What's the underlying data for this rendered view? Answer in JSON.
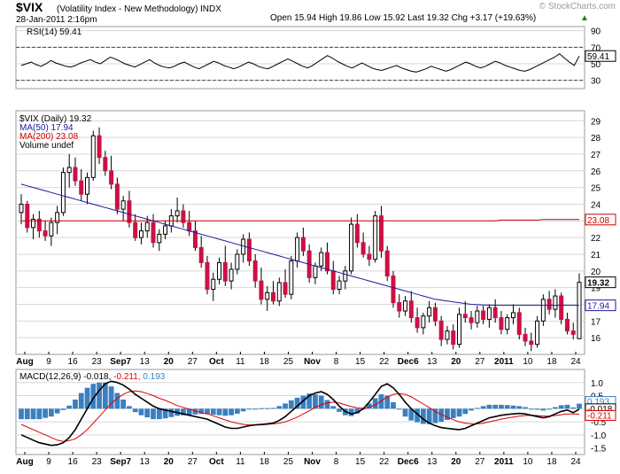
{
  "header": {
    "symbol": "$VIX",
    "name": "(Volatility Index - New Methodology)",
    "exchange": "INDX",
    "datetime": "28-Jan-2011 2:16pm",
    "quote": "Open 15.94  High 19.86  Low 15.92  Last 19.32  Chg +3.17 (+19.63%)",
    "quote_arrow": "▲",
    "watermark": "© StockCharts.com"
  },
  "colors": {
    "up": "#ffffff",
    "down": "#cc1144",
    "ma50": "#1a1a99",
    "ma200": "#cc0000",
    "rsi": "#000000",
    "macd": "#000000",
    "signal": "#dd0000",
    "histogram": "#3a7fc0",
    "grid": "#d8d8d8"
  },
  "chart_data": [
    {
      "type": "line",
      "title": "RSI(14) 59.41",
      "series": [
        {
          "name": "RSI(14)",
          "last": 59.41
        }
      ],
      "y_ticks": [
        "90",
        "70",
        "50",
        "30"
      ],
      "ylim": [
        20,
        95
      ],
      "reference_lines": [
        70,
        30
      ],
      "last_value_label": "59.41",
      "y": [
        48,
        50,
        52,
        49,
        47,
        50,
        54,
        51,
        49,
        47,
        46,
        48,
        51,
        53,
        55,
        52,
        50,
        54,
        58,
        56,
        53,
        50,
        48,
        46,
        49,
        52,
        55,
        51,
        48,
        46,
        45,
        47,
        50,
        52,
        49,
        46,
        44,
        47,
        50,
        53,
        51,
        48,
        46,
        44,
        46,
        49,
        52,
        50,
        47,
        45,
        44,
        47,
        50,
        53,
        56,
        53,
        50,
        47,
        45,
        48,
        52,
        56,
        60,
        57,
        53,
        50,
        47,
        45,
        48,
        51,
        48,
        45,
        43,
        42,
        44,
        46,
        48,
        45,
        43,
        41,
        40,
        42,
        44,
        47,
        45,
        43,
        41,
        43,
        46,
        49,
        52,
        50,
        47,
        45,
        47,
        50,
        53,
        51,
        48,
        46,
        44,
        42,
        41,
        43,
        46,
        49,
        52,
        55,
        58,
        62,
        57,
        52,
        48,
        59.41
      ]
    },
    {
      "type": "candlestick",
      "title": "$VIX (Daily) 19.32",
      "legend": [
        {
          "label": "$VIX (Daily) 19.32",
          "color": "#000000"
        },
        {
          "label": "MA(50) 17.94",
          "color": "#1a1a99"
        },
        {
          "label": "MA(200) 23.08",
          "color": "#cc0000"
        },
        {
          "label": "Volume undef",
          "color": "#000000"
        }
      ],
      "y_ticks": [
        "29",
        "28",
        "27",
        "26",
        "25",
        "24",
        "23",
        "22",
        "21",
        "20",
        "19",
        "18",
        "17",
        "16"
      ],
      "ylim": [
        15,
        29.6
      ],
      "x_tick_labels": [
        "Aug",
        "9",
        "16",
        "23",
        "Sep7",
        "13",
        "20",
        "27",
        "Oct",
        "11",
        "18",
        "25",
        "Nov",
        "8",
        "15",
        "22",
        "Dec6",
        "13",
        "20",
        "27",
        "2011",
        "10",
        "18",
        "24"
      ],
      "last_value_labels": {
        "ma200": "23.08",
        "close": "19.32",
        "ma50": "17.94"
      },
      "ohlc": [
        [
          23.5,
          24.6,
          22.8,
          24.0
        ],
        [
          24.0,
          24.2,
          22.3,
          22.6
        ],
        [
          22.6,
          23.4,
          21.9,
          23.1
        ],
        [
          23.1,
          23.6,
          22.0,
          22.4
        ],
        [
          22.4,
          23.0,
          21.8,
          22.1
        ],
        [
          22.1,
          23.2,
          21.5,
          22.9
        ],
        [
          22.9,
          23.9,
          22.2,
          23.5
        ],
        [
          23.5,
          26.2,
          23.3,
          25.9
        ],
        [
          25.9,
          27.0,
          25.0,
          26.2
        ],
        [
          26.2,
          26.8,
          25.1,
          25.4
        ],
        [
          25.4,
          26.1,
          24.2,
          24.6
        ],
        [
          24.6,
          25.9,
          24.0,
          25.6
        ],
        [
          25.6,
          28.4,
          25.4,
          28.1
        ],
        [
          28.1,
          28.6,
          26.4,
          26.8
        ],
        [
          26.8,
          27.2,
          25.7,
          26.0
        ],
        [
          26.0,
          26.9,
          24.9,
          25.2
        ],
        [
          25.2,
          25.6,
          23.4,
          23.7
        ],
        [
          23.7,
          24.5,
          23.0,
          24.2
        ],
        [
          24.2,
          24.8,
          22.6,
          22.9
        ],
        [
          22.9,
          23.4,
          21.8,
          22.0
        ],
        [
          22.0,
          22.9,
          21.6,
          22.4
        ],
        [
          22.4,
          23.3,
          22.0,
          22.9
        ],
        [
          22.9,
          23.4,
          21.4,
          21.7
        ],
        [
          21.7,
          22.5,
          21.2,
          22.2
        ],
        [
          22.2,
          23.0,
          21.9,
          22.7
        ],
        [
          22.7,
          23.7,
          22.3,
          23.3
        ],
        [
          23.3,
          24.4,
          22.9,
          23.6
        ],
        [
          23.6,
          24.0,
          22.6,
          22.9
        ],
        [
          22.9,
          23.6,
          22.1,
          22.4
        ],
        [
          22.4,
          23.0,
          21.2,
          21.4
        ],
        [
          21.4,
          22.1,
          20.2,
          20.5
        ],
        [
          20.5,
          20.9,
          18.6,
          18.9
        ],
        [
          18.9,
          19.9,
          18.2,
          19.5
        ],
        [
          19.5,
          20.8,
          19.2,
          20.5
        ],
        [
          20.5,
          21.5,
          19.1,
          19.4
        ],
        [
          19.4,
          20.5,
          18.9,
          20.1
        ],
        [
          20.1,
          21.3,
          19.8,
          21.0
        ],
        [
          21.0,
          22.2,
          20.5,
          21.9
        ],
        [
          21.9,
          22.3,
          20.3,
          20.6
        ],
        [
          20.6,
          21.0,
          19.0,
          19.4
        ],
        [
          19.4,
          20.2,
          18.0,
          18.3
        ],
        [
          18.3,
          19.1,
          17.6,
          18.7
        ],
        [
          18.7,
          19.4,
          18.0,
          18.2
        ],
        [
          18.2,
          19.6,
          17.9,
          19.3
        ],
        [
          19.3,
          20.1,
          18.4,
          18.6
        ],
        [
          18.6,
          20.9,
          18.3,
          20.6
        ],
        [
          20.6,
          22.3,
          20.2,
          22.0
        ],
        [
          22.0,
          22.6,
          20.9,
          21.2
        ],
        [
          21.2,
          21.6,
          19.3,
          19.6
        ],
        [
          19.6,
          20.5,
          19.2,
          20.3
        ],
        [
          20.3,
          21.4,
          20.0,
          21.1
        ],
        [
          21.1,
          21.7,
          19.8,
          20.0
        ],
        [
          20.0,
          20.6,
          18.6,
          18.9
        ],
        [
          18.9,
          19.7,
          18.6,
          19.4
        ],
        [
          19.4,
          20.3,
          18.9,
          20.0
        ],
        [
          20.0,
          23.2,
          19.8,
          22.8
        ],
        [
          22.8,
          23.4,
          21.4,
          21.7
        ],
        [
          21.7,
          22.3,
          20.8,
          21.0
        ],
        [
          21.0,
          21.5,
          20.3,
          20.7
        ],
        [
          20.7,
          23.6,
          20.5,
          23.3
        ],
        [
          23.3,
          23.9,
          20.8,
          21.2
        ],
        [
          21.2,
          21.5,
          19.4,
          19.7
        ],
        [
          19.7,
          20.0,
          17.8,
          18.1
        ],
        [
          18.1,
          18.6,
          17.2,
          17.6
        ],
        [
          17.6,
          18.5,
          17.3,
          18.2
        ],
        [
          18.2,
          18.8,
          16.9,
          17.2
        ],
        [
          17.2,
          17.8,
          16.3,
          16.6
        ],
        [
          16.6,
          17.5,
          16.2,
          17.3
        ],
        [
          17.3,
          18.2,
          16.9,
          17.8
        ],
        [
          17.8,
          18.1,
          16.7,
          17.0
        ],
        [
          17.0,
          17.3,
          15.5,
          15.9
        ],
        [
          15.9,
          16.7,
          15.6,
          16.4
        ],
        [
          16.4,
          16.8,
          15.3,
          15.6
        ],
        [
          15.6,
          17.8,
          15.4,
          17.4
        ],
        [
          17.4,
          18.2,
          16.9,
          17.2
        ],
        [
          17.2,
          17.6,
          16.5,
          16.9
        ],
        [
          16.9,
          17.9,
          16.6,
          17.6
        ],
        [
          17.6,
          17.9,
          16.8,
          17.1
        ],
        [
          17.1,
          18.0,
          16.6,
          17.8
        ],
        [
          17.8,
          18.3,
          16.9,
          17.2
        ],
        [
          17.2,
          17.6,
          16.2,
          16.5
        ],
        [
          16.5,
          17.4,
          16.2,
          17.2
        ],
        [
          17.2,
          18.0,
          16.8,
          17.5
        ],
        [
          17.5,
          17.8,
          15.9,
          16.2
        ],
        [
          16.2,
          16.6,
          15.5,
          15.8
        ],
        [
          15.8,
          16.3,
          15.2,
          15.6
        ],
        [
          15.6,
          17.3,
          15.4,
          17.0
        ],
        [
          17.0,
          18.6,
          16.7,
          18.3
        ],
        [
          18.3,
          18.8,
          17.4,
          17.7
        ],
        [
          17.7,
          18.9,
          17.2,
          18.5
        ],
        [
          18.5,
          18.7,
          16.8,
          17.1
        ],
        [
          17.1,
          17.5,
          16.2,
          16.4
        ],
        [
          16.4,
          16.9,
          15.9,
          16.2
        ],
        [
          15.94,
          19.86,
          15.92,
          19.32
        ]
      ],
      "ma50": [
        25.2,
        25.1,
        25.0,
        24.9,
        24.8,
        24.7,
        24.6,
        24.5,
        24.4,
        24.3,
        24.2,
        24.1,
        24.0,
        23.9,
        23.8,
        23.7,
        23.6,
        23.5,
        23.4,
        23.3,
        23.2,
        23.1,
        23.0,
        22.9,
        22.8,
        22.7,
        22.6,
        22.5,
        22.4,
        22.3,
        22.2,
        22.1,
        22.0,
        21.9,
        21.8,
        21.7,
        21.6,
        21.5,
        21.4,
        21.3,
        21.2,
        21.1,
        21.0,
        20.9,
        20.8,
        20.7,
        20.6,
        20.5,
        20.4,
        20.3,
        20.2,
        20.1,
        20.0,
        19.9,
        19.8,
        19.7,
        19.6,
        19.5,
        19.4,
        19.3,
        19.2,
        19.1,
        19.0,
        18.9,
        18.8,
        18.7,
        18.6,
        18.5,
        18.4,
        18.3,
        18.25,
        18.2,
        18.15,
        18.1,
        18.05,
        18.0,
        17.98,
        17.96,
        17.95,
        17.94,
        17.94,
        17.94,
        17.94,
        17.94,
        17.94,
        17.94,
        17.94,
        17.94,
        17.94,
        17.94,
        17.94,
        17.94,
        17.94,
        17.94
      ],
      "ma200": [
        23.0,
        23.0,
        23.0,
        23.0,
        23.0,
        23.0,
        23.0,
        23.0,
        23.0,
        23.0,
        23.0,
        23.0,
        23.0,
        23.0,
        23.0,
        23.0,
        23.0,
        23.0,
        23.0,
        23.0,
        23.0,
        23.0,
        23.0,
        23.0,
        23.0,
        23.0,
        23.0,
        23.0,
        23.0,
        23.0,
        23.0,
        23.0,
        23.0,
        23.0,
        23.0,
        23.0,
        23.0,
        23.0,
        23.0,
        23.0,
        23.0,
        23.0,
        23.0,
        23.0,
        23.0,
        23.0,
        23.0,
        23.0,
        23.0,
        23.0,
        23.0,
        23.0,
        23.0,
        23.0,
        23.0,
        23.0,
        23.0,
        23.0,
        23.0,
        23.0,
        23.0,
        23.0,
        23.0,
        23.0,
        23.0,
        23.0,
        23.0,
        23.0,
        23.0,
        23.0,
        23.0,
        23.0,
        23.0,
        23.0,
        23.0,
        23.0,
        23.0,
        23.0,
        23.0,
        23.0,
        23.05,
        23.05,
        23.05,
        23.05,
        23.05,
        23.05,
        23.05,
        23.08,
        23.08,
        23.08,
        23.08,
        23.08,
        23.08,
        23.08
      ]
    },
    {
      "type": "line",
      "title": "MACD(12,26,9) -0.018, -0.211, 0.193",
      "legend": [
        {
          "label": "MACD(12,26,9)",
          "value": "-0.018",
          "color": "#000000"
        },
        {
          "label": "",
          "value": "-0.211",
          "color": "#dd0000"
        },
        {
          "label": "",
          "value": "0.193",
          "color": "#3a7fc0"
        }
      ],
      "y_ticks": [
        "1.0",
        "0.5",
        "0.0",
        "-0.5",
        "-1.0",
        "-1.5"
      ],
      "ylim": [
        -1.75,
        1.5
      ],
      "x_tick_labels": [
        "Aug",
        "9",
        "16",
        "23",
        "Sep7",
        "13",
        "20",
        "27",
        "Oct",
        "11",
        "18",
        "25",
        "Nov",
        "8",
        "15",
        "22",
        "Dec6",
        "13",
        "20",
        "27",
        "2011",
        "10",
        "18",
        "24"
      ],
      "last_value_labels": {
        "histogram": "0.193",
        "macd": "-0.018",
        "signal": "-0.211"
      },
      "macd": [
        -1.0,
        -1.1,
        -1.2,
        -1.3,
        -1.35,
        -1.4,
        -1.38,
        -1.3,
        -1.1,
        -0.8,
        -0.4,
        0.0,
        0.4,
        0.7,
        0.95,
        1.05,
        1.0,
        0.9,
        0.75,
        0.55,
        0.4,
        0.25,
        0.1,
        0.0,
        -0.05,
        -0.1,
        -0.15,
        -0.2,
        -0.25,
        -0.3,
        -0.35,
        -0.4,
        -0.5,
        -0.6,
        -0.7,
        -0.75,
        -0.75,
        -0.7,
        -0.65,
        -0.62,
        -0.6,
        -0.58,
        -0.55,
        -0.45,
        -0.3,
        -0.1,
        0.1,
        0.3,
        0.5,
        0.6,
        0.65,
        0.55,
        0.35,
        0.1,
        -0.1,
        -0.2,
        -0.15,
        0.0,
        0.25,
        0.55,
        0.85,
        0.95,
        0.8,
        0.55,
        0.25,
        0.0,
        -0.2,
        -0.4,
        -0.55,
        -0.65,
        -0.72,
        -0.75,
        -0.78,
        -0.8,
        -0.75,
        -0.65,
        -0.55,
        -0.45,
        -0.35,
        -0.3,
        -0.25,
        -0.22,
        -0.2,
        -0.18,
        -0.2,
        -0.25,
        -0.3,
        -0.35,
        -0.3,
        -0.2,
        -0.1,
        -0.05,
        -0.15,
        -0.018
      ],
      "signal": [
        -0.6,
        -0.7,
        -0.8,
        -0.9,
        -1.0,
        -1.1,
        -1.2,
        -1.25,
        -1.22,
        -1.15,
        -1.0,
        -0.8,
        -0.55,
        -0.3,
        -0.05,
        0.2,
        0.4,
        0.55,
        0.65,
        0.68,
        0.65,
        0.58,
        0.5,
        0.4,
        0.32,
        0.22,
        0.12,
        0.05,
        -0.02,
        -0.08,
        -0.15,
        -0.2,
        -0.27,
        -0.35,
        -0.43,
        -0.5,
        -0.56,
        -0.6,
        -0.62,
        -0.62,
        -0.62,
        -0.6,
        -0.58,
        -0.55,
        -0.5,
        -0.42,
        -0.32,
        -0.2,
        -0.08,
        0.05,
        0.15,
        0.22,
        0.25,
        0.22,
        0.15,
        0.08,
        0.03,
        0.02,
        0.05,
        0.15,
        0.3,
        0.45,
        0.55,
        0.58,
        0.55,
        0.45,
        0.32,
        0.18,
        0.04,
        -0.1,
        -0.22,
        -0.32,
        -0.42,
        -0.5,
        -0.55,
        -0.58,
        -0.58,
        -0.55,
        -0.5,
        -0.45,
        -0.4,
        -0.36,
        -0.32,
        -0.28,
        -0.26,
        -0.25,
        -0.26,
        -0.28,
        -0.28,
        -0.26,
        -0.23,
        -0.2,
        -0.2,
        -0.211
      ]
    }
  ]
}
